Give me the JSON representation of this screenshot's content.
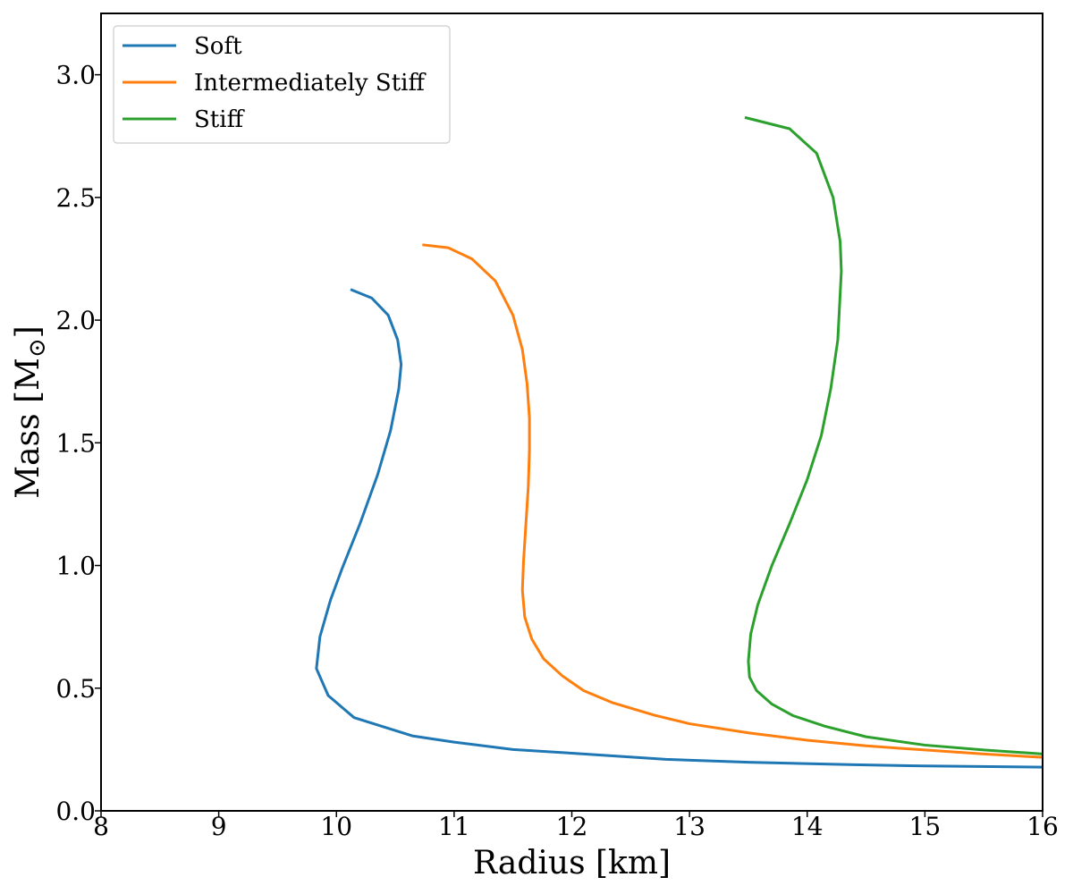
{
  "chart_data": {
    "type": "line",
    "title": "",
    "xlabel": "Radius [km]",
    "ylabel_main": "Mass [M",
    "ylabel_symbol": "⊙",
    "ylabel_end": "]",
    "xlim": [
      8,
      16
    ],
    "ylim": [
      0,
      3.25
    ],
    "xticks": [
      8,
      9,
      10,
      11,
      12,
      13,
      14,
      15,
      16
    ],
    "yticks": [
      0.0,
      0.5,
      1.0,
      1.5,
      2.0,
      2.5,
      3.0
    ],
    "xtick_labels": [
      "8",
      "9",
      "10",
      "11",
      "12",
      "13",
      "14",
      "15",
      "16"
    ],
    "ytick_labels": [
      "0.0",
      "0.5",
      "1.0",
      "1.5",
      "2.0",
      "2.5",
      "3.0"
    ],
    "grid": false,
    "legend_position": "top-left",
    "series": [
      {
        "name": "Soft",
        "color": "#1f77b4",
        "x": [
          16.0,
          15.0,
          14.4,
          13.5,
          12.8,
          12.0,
          11.5,
          11.0,
          10.65,
          10.15,
          9.93,
          9.83,
          9.86,
          9.95,
          10.05,
          10.2,
          10.35,
          10.46,
          10.53,
          10.55,
          10.52,
          10.44,
          10.3,
          10.12
        ],
        "y": [
          0.178,
          0.183,
          0.188,
          0.198,
          0.21,
          0.235,
          0.25,
          0.28,
          0.305,
          0.38,
          0.47,
          0.58,
          0.71,
          0.86,
          0.99,
          1.17,
          1.37,
          1.55,
          1.72,
          1.82,
          1.92,
          2.02,
          2.09,
          2.125
        ],
        "marks": []
      },
      {
        "name": "Intermediately Stiff",
        "color": "#ff7f0e",
        "x": [
          16.0,
          15.5,
          15.0,
          14.5,
          14.0,
          13.5,
          13.0,
          12.7,
          12.35,
          12.1,
          11.92,
          11.76,
          11.66,
          11.6,
          11.58,
          11.59,
          11.61,
          11.63,
          11.64,
          11.64,
          11.62,
          11.58,
          11.5,
          11.35,
          11.15,
          10.95,
          10.73
        ],
        "y": [
          0.218,
          0.232,
          0.248,
          0.265,
          0.288,
          0.318,
          0.355,
          0.39,
          0.44,
          0.49,
          0.55,
          0.62,
          0.7,
          0.79,
          0.9,
          1.02,
          1.17,
          1.32,
          1.47,
          1.6,
          1.74,
          1.88,
          2.02,
          2.16,
          2.25,
          2.295,
          2.307
        ],
        "marks": []
      },
      {
        "name": "Stiff",
        "color": "#2ca02c",
        "x": [
          16.0,
          15.5,
          15.0,
          14.5,
          14.15,
          13.88,
          13.7,
          13.57,
          13.51,
          13.5,
          13.52,
          13.58,
          13.7,
          13.85,
          14.0,
          14.12,
          14.2,
          14.26,
          14.29,
          14.28,
          14.22,
          14.08,
          13.85,
          13.47
        ],
        "y": [
          0.232,
          0.248,
          0.268,
          0.302,
          0.345,
          0.388,
          0.435,
          0.49,
          0.545,
          0.61,
          0.72,
          0.84,
          1.0,
          1.17,
          1.35,
          1.53,
          1.72,
          1.92,
          2.2,
          2.32,
          2.5,
          2.68,
          2.78,
          2.826
        ],
        "marks": []
      }
    ]
  }
}
